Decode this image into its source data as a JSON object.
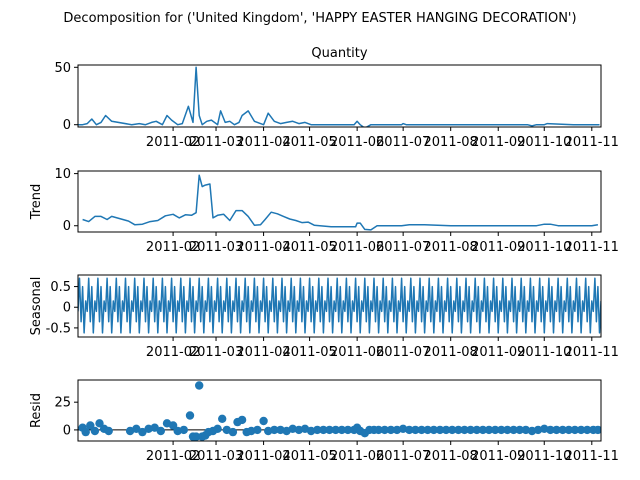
{
  "figure": {
    "suptitle": "Decomposition for ('United Kingdom', 'HAPPY EASTER HANGING DECORATION')"
  },
  "chart_data": [
    {
      "type": "line",
      "name": "observed",
      "title": "Quantity",
      "xlabel": "",
      "ylabel": "",
      "ylim": [
        -2,
        52
      ],
      "yticks": [
        0,
        50
      ],
      "color": "#1f77b4",
      "x": [
        "2010-12-01",
        "2010-12-04",
        "2010-12-07",
        "2010-12-10",
        "2010-12-13",
        "2010-12-16",
        "2010-12-19",
        "2010-12-23",
        "2011-01-05",
        "2011-01-10",
        "2011-01-14",
        "2011-01-18",
        "2011-01-21",
        "2011-01-25",
        "2011-01-28",
        "2011-01-31",
        "2011-02-04",
        "2011-02-07",
        "2011-02-11",
        "2011-02-14",
        "2011-02-16",
        "2011-02-18",
        "2011-02-20",
        "2011-02-23",
        "2011-02-26",
        "2011-03-02",
        "2011-03-04",
        "2011-03-07",
        "2011-03-10",
        "2011-03-13",
        "2011-03-16",
        "2011-03-18",
        "2011-03-22",
        "2011-03-26",
        "2011-03-30",
        "2011-04-01",
        "2011-04-04",
        "2011-04-08",
        "2011-04-12",
        "2011-04-16",
        "2011-04-20",
        "2011-04-24",
        "2011-04-28",
        "2011-05-02",
        "2011-05-10",
        "2011-05-20",
        "2011-05-30",
        "2011-06-01",
        "2011-06-03",
        "2011-06-06",
        "2011-06-10",
        "2011-06-20",
        "2011-06-30",
        "2011-07-01",
        "2011-07-03",
        "2011-07-10",
        "2011-08-01",
        "2011-09-01",
        "2011-09-20",
        "2011-09-23",
        "2011-09-26",
        "2011-10-01",
        "2011-10-03",
        "2011-10-20",
        "2011-11-01",
        "2011-11-06"
      ],
      "values": [
        0,
        0,
        1,
        5,
        0,
        2,
        8,
        3,
        0,
        1,
        0,
        2,
        3,
        0,
        8,
        4,
        0,
        1,
        16,
        2,
        50,
        8,
        0,
        3,
        4,
        0,
        12,
        2,
        3,
        0,
        2,
        8,
        12,
        3,
        1,
        0,
        10,
        3,
        1,
        2,
        3,
        1,
        2,
        0,
        0,
        0,
        0,
        3,
        0,
        -3,
        0,
        0,
        0,
        1,
        0,
        0,
        0,
        0,
        0,
        -1,
        0,
        0,
        1,
        0,
        0,
        0
      ]
    },
    {
      "type": "line",
      "name": "trend",
      "title": "",
      "xlabel": "",
      "ylabel": "Trend",
      "ylim": [
        -1.2,
        10.5
      ],
      "yticks": [
        0,
        10
      ],
      "color": "#1f77b4",
      "x": [
        "2010-12-04",
        "2010-12-08",
        "2010-12-12",
        "2010-12-16",
        "2010-12-20",
        "2010-12-23",
        "2011-01-03",
        "2011-01-07",
        "2011-01-12",
        "2011-01-17",
        "2011-01-22",
        "2011-01-27",
        "2011-02-01",
        "2011-02-05",
        "2011-02-09",
        "2011-02-13",
        "2011-02-16",
        "2011-02-18",
        "2011-02-20",
        "2011-02-22",
        "2011-02-25",
        "2011-02-27",
        "2011-03-02",
        "2011-03-06",
        "2011-03-10",
        "2011-03-14",
        "2011-03-18",
        "2011-03-22",
        "2011-03-26",
        "2011-03-30",
        "2011-04-02",
        "2011-04-06",
        "2011-04-10",
        "2011-04-14",
        "2011-04-18",
        "2011-04-22",
        "2011-04-26",
        "2011-04-30",
        "2011-05-04",
        "2011-05-15",
        "2011-05-31",
        "2011-06-01",
        "2011-06-03",
        "2011-06-06",
        "2011-06-10",
        "2011-06-14",
        "2011-06-20",
        "2011-06-26",
        "2011-06-30",
        "2011-07-05",
        "2011-07-15",
        "2011-08-01",
        "2011-09-01",
        "2011-09-15",
        "2011-09-23",
        "2011-09-26",
        "2011-10-01",
        "2011-10-05",
        "2011-10-10",
        "2011-11-01",
        "2011-11-05"
      ],
      "values": [
        1.2,
        0.8,
        1.8,
        1.8,
        1.2,
        1.8,
        0.9,
        0.2,
        0.3,
        0.8,
        1.0,
        1.9,
        2.2,
        1.5,
        2.1,
        2.0,
        2.5,
        9.7,
        7.5,
        7.8,
        8.0,
        1.5,
        2.0,
        2.2,
        1.0,
        2.9,
        2.9,
        1.8,
        0.1,
        0.2,
        1.2,
        2.6,
        2.3,
        1.8,
        1.3,
        1.0,
        0.6,
        0.7,
        0.1,
        -0.2,
        -0.2,
        0.5,
        0.5,
        -0.7,
        -0.8,
        0.0,
        0.0,
        0.0,
        0.0,
        0.2,
        0.2,
        0.0,
        0.0,
        0.0,
        0.0,
        0.0,
        0.3,
        0.3,
        0.0,
        0.0,
        0.2
      ]
    },
    {
      "type": "line",
      "name": "seasonal",
      "title": "",
      "xlabel": "",
      "ylabel": "Seasonal",
      "ylim": [
        -0.72,
        0.78
      ],
      "yticks": [
        -0.5,
        0.0,
        0.5
      ],
      "color": "#1f77b4",
      "period_days": 6,
      "cycle_values": [
        -0.1,
        0.7,
        -0.35,
        0.5,
        -0.62,
        0.15
      ],
      "x_start": "2010-12-01",
      "x_end": "2011-11-07"
    },
    {
      "type": "scatter",
      "name": "resid",
      "title": "",
      "xlabel": "",
      "ylabel": "Resid",
      "ylim": [
        -10,
        45
      ],
      "yticks": [
        0,
        25
      ],
      "color": "#1f77b4",
      "baseline": 0,
      "points": [
        [
          "2010-12-04",
          2
        ],
        [
          "2010-12-06",
          -2
        ],
        [
          "2010-12-09",
          4
        ],
        [
          "2010-12-12",
          -1
        ],
        [
          "2010-12-15",
          6
        ],
        [
          "2010-12-18",
          1
        ],
        [
          "2010-12-21",
          -1
        ],
        [
          "2011-01-04",
          -1
        ],
        [
          "2011-01-08",
          1
        ],
        [
          "2011-01-12",
          -2
        ],
        [
          "2011-01-16",
          1
        ],
        [
          "2011-01-20",
          2
        ],
        [
          "2011-01-24",
          -1
        ],
        [
          "2011-01-28",
          6
        ],
        [
          "2011-02-01",
          4
        ],
        [
          "2011-02-04",
          -1
        ],
        [
          "2011-02-08",
          0
        ],
        [
          "2011-02-12",
          13
        ],
        [
          "2011-02-14",
          -6
        ],
        [
          "2011-02-16",
          -6
        ],
        [
          "2011-02-18",
          40
        ],
        [
          "2011-02-20",
          -6
        ],
        [
          "2011-02-22",
          -5
        ],
        [
          "2011-02-24",
          -2
        ],
        [
          "2011-02-27",
          -1
        ],
        [
          "2011-03-02",
          1
        ],
        [
          "2011-03-05",
          10
        ],
        [
          "2011-03-08",
          0
        ],
        [
          "2011-03-12",
          -2
        ],
        [
          "2011-03-15",
          7
        ],
        [
          "2011-03-18",
          9
        ],
        [
          "2011-03-21",
          -2
        ],
        [
          "2011-03-24",
          -1
        ],
        [
          "2011-03-28",
          0
        ],
        [
          "2011-04-01",
          8
        ],
        [
          "2011-04-04",
          -1
        ],
        [
          "2011-04-08",
          0
        ],
        [
          "2011-04-12",
          0
        ],
        [
          "2011-04-16",
          -1
        ],
        [
          "2011-04-20",
          1
        ],
        [
          "2011-04-24",
          0
        ],
        [
          "2011-04-28",
          1
        ],
        [
          "2011-05-02",
          -1
        ],
        [
          "2011-05-06",
          0
        ],
        [
          "2011-05-10",
          0
        ],
        [
          "2011-05-14",
          0
        ],
        [
          "2011-05-18",
          0
        ],
        [
          "2011-05-22",
          0
        ],
        [
          "2011-05-26",
          0
        ],
        [
          "2011-05-30",
          0
        ],
        [
          "2011-06-01",
          2
        ],
        [
          "2011-06-03",
          -1
        ],
        [
          "2011-06-06",
          -3
        ],
        [
          "2011-06-09",
          0
        ],
        [
          "2011-06-12",
          0
        ],
        [
          "2011-06-15",
          0
        ],
        [
          "2011-06-19",
          0
        ],
        [
          "2011-06-23",
          0
        ],
        [
          "2011-06-27",
          0
        ],
        [
          "2011-07-01",
          1
        ],
        [
          "2011-07-05",
          0
        ],
        [
          "2011-07-09",
          0
        ],
        [
          "2011-07-13",
          0
        ],
        [
          "2011-07-17",
          0
        ],
        [
          "2011-07-21",
          0
        ],
        [
          "2011-07-25",
          0
        ],
        [
          "2011-07-29",
          0
        ],
        [
          "2011-08-02",
          0
        ],
        [
          "2011-08-06",
          0
        ],
        [
          "2011-08-10",
          0
        ],
        [
          "2011-08-14",
          0
        ],
        [
          "2011-08-18",
          0
        ],
        [
          "2011-08-22",
          0
        ],
        [
          "2011-08-26",
          0
        ],
        [
          "2011-08-30",
          0
        ],
        [
          "2011-09-03",
          0
        ],
        [
          "2011-09-07",
          0
        ],
        [
          "2011-09-11",
          0
        ],
        [
          "2011-09-15",
          0
        ],
        [
          "2011-09-19",
          0
        ],
        [
          "2011-09-23",
          -1
        ],
        [
          "2011-09-27",
          0
        ],
        [
          "2011-10-01",
          1
        ],
        [
          "2011-10-05",
          0
        ],
        [
          "2011-10-09",
          0
        ],
        [
          "2011-10-13",
          0
        ],
        [
          "2011-10-17",
          0
        ],
        [
          "2011-10-21",
          0
        ],
        [
          "2011-10-25",
          0
        ],
        [
          "2011-10-29",
          0
        ],
        [
          "2011-11-02",
          0
        ],
        [
          "2011-11-05",
          0
        ]
      ]
    }
  ],
  "x_axis": {
    "range": [
      "2010-12-01",
      "2011-11-07"
    ],
    "ticks": [
      {
        "date": "2011-02-01",
        "label": "2011-02"
      },
      {
        "date": "2011-03-01",
        "label": "2011-03"
      },
      {
        "date": "2011-04-01",
        "label": "2011-04"
      },
      {
        "date": "2011-05-01",
        "label": "2011-05"
      },
      {
        "date": "2011-06-01",
        "label": "2011-06"
      },
      {
        "date": "2011-07-01",
        "label": "2011-07"
      },
      {
        "date": "2011-08-01",
        "label": "2011-08"
      },
      {
        "date": "2011-09-01",
        "label": "2011-09"
      },
      {
        "date": "2011-10-01",
        "label": "2011-10"
      },
      {
        "date": "2011-11-01",
        "label": "2011-11"
      }
    ]
  }
}
